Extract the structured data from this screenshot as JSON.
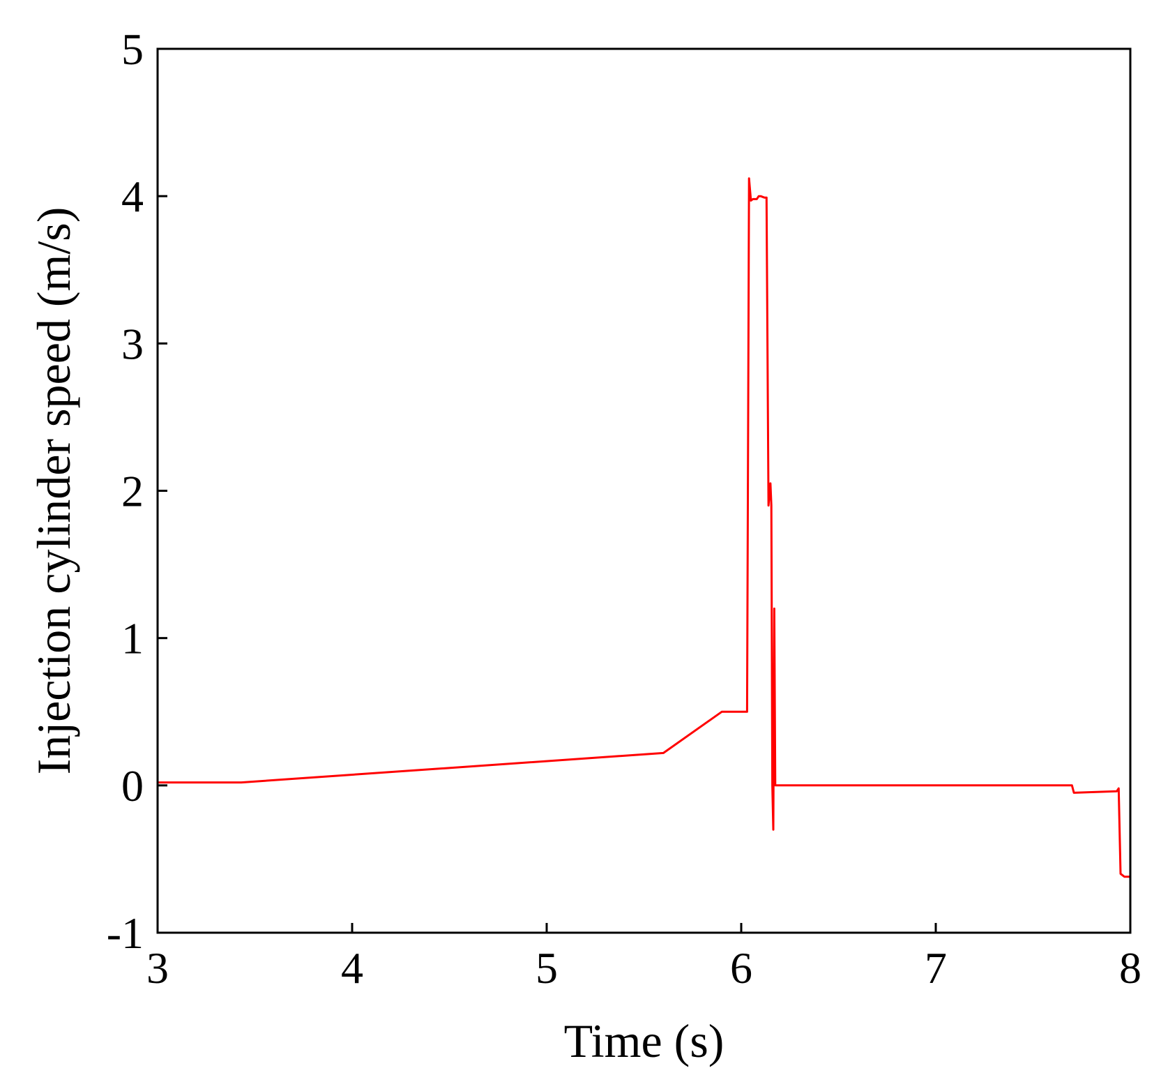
{
  "chart_data": {
    "type": "line",
    "title": "",
    "xlabel": "Time (s)",
    "ylabel": "Injection cylinder speed (m/s)",
    "xlim": [
      3,
      8
    ],
    "ylim": [
      -1,
      5
    ],
    "xticks": [
      "3",
      "4",
      "5",
      "6",
      "7",
      "8"
    ],
    "yticks": [
      "-1",
      "0",
      "1",
      "2",
      "3",
      "4",
      "5"
    ],
    "grid": false,
    "legend": "none",
    "colors": {
      "series": "#ff0000",
      "axis": "#000000"
    },
    "series": [
      {
        "x": [
          3.0,
          3.43,
          5.6,
          5.9,
          6.03,
          6.04,
          6.05,
          6.06,
          6.08,
          6.09,
          6.1,
          6.12,
          6.13,
          6.14,
          6.15,
          6.155,
          6.16,
          6.165,
          6.17,
          6.175,
          6.18,
          6.185,
          7.7,
          7.71,
          7.93,
          7.94,
          7.95,
          7.97,
          8.0
        ],
        "y": [
          0.02,
          0.02,
          0.22,
          0.5,
          0.5,
          4.12,
          3.97,
          3.98,
          3.98,
          4.0,
          4.0,
          3.99,
          3.99,
          1.9,
          2.05,
          1.9,
          0.0,
          -0.3,
          1.2,
          0.0,
          0.0,
          0.0,
          0.0,
          -0.05,
          -0.04,
          -0.02,
          -0.6,
          -0.62,
          -0.62
        ]
      }
    ]
  }
}
